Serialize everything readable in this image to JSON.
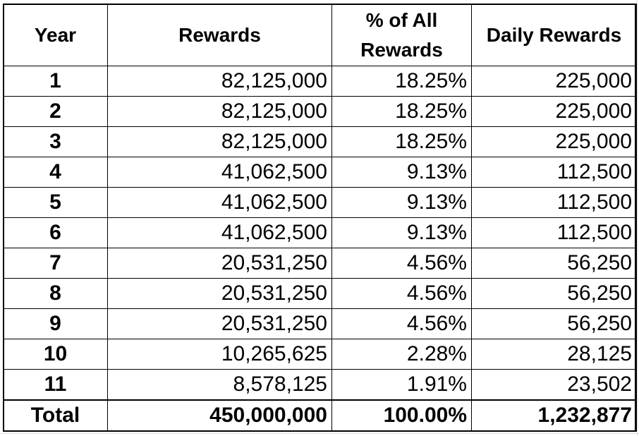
{
  "table": {
    "headers": {
      "year": "Year",
      "rewards": "Rewards",
      "pct": "% of All Rewards",
      "daily": "Daily Rewards"
    },
    "rows": [
      {
        "year": "1",
        "rewards": "82,125,000",
        "pct": "18.25%",
        "daily": "225,000"
      },
      {
        "year": "2",
        "rewards": "82,125,000",
        "pct": "18.25%",
        "daily": "225,000"
      },
      {
        "year": "3",
        "rewards": "82,125,000",
        "pct": "18.25%",
        "daily": "225,000"
      },
      {
        "year": "4",
        "rewards": "41,062,500",
        "pct": "9.13%",
        "daily": "112,500"
      },
      {
        "year": "5",
        "rewards": "41,062,500",
        "pct": "9.13%",
        "daily": "112,500"
      },
      {
        "year": "6",
        "rewards": "41,062,500",
        "pct": "9.13%",
        "daily": "112,500"
      },
      {
        "year": "7",
        "rewards": "20,531,250",
        "pct": "4.56%",
        "daily": "56,250"
      },
      {
        "year": "8",
        "rewards": "20,531,250",
        "pct": "4.56%",
        "daily": "56,250"
      },
      {
        "year": "9",
        "rewards": "20,531,250",
        "pct": "4.56%",
        "daily": "56,250"
      },
      {
        "year": "10",
        "rewards": "10,265,625",
        "pct": "2.28%",
        "daily": "28,125"
      },
      {
        "year": "11",
        "rewards": "8,578,125",
        "pct": "1.91%",
        "daily": "23,502"
      }
    ],
    "total": {
      "label": "Total",
      "rewards": "450,000,000",
      "pct": "100.00%",
      "daily": "1,232,877"
    }
  },
  "colors": {
    "border": "#000000",
    "background": "#ffffff",
    "text": "#000000"
  }
}
